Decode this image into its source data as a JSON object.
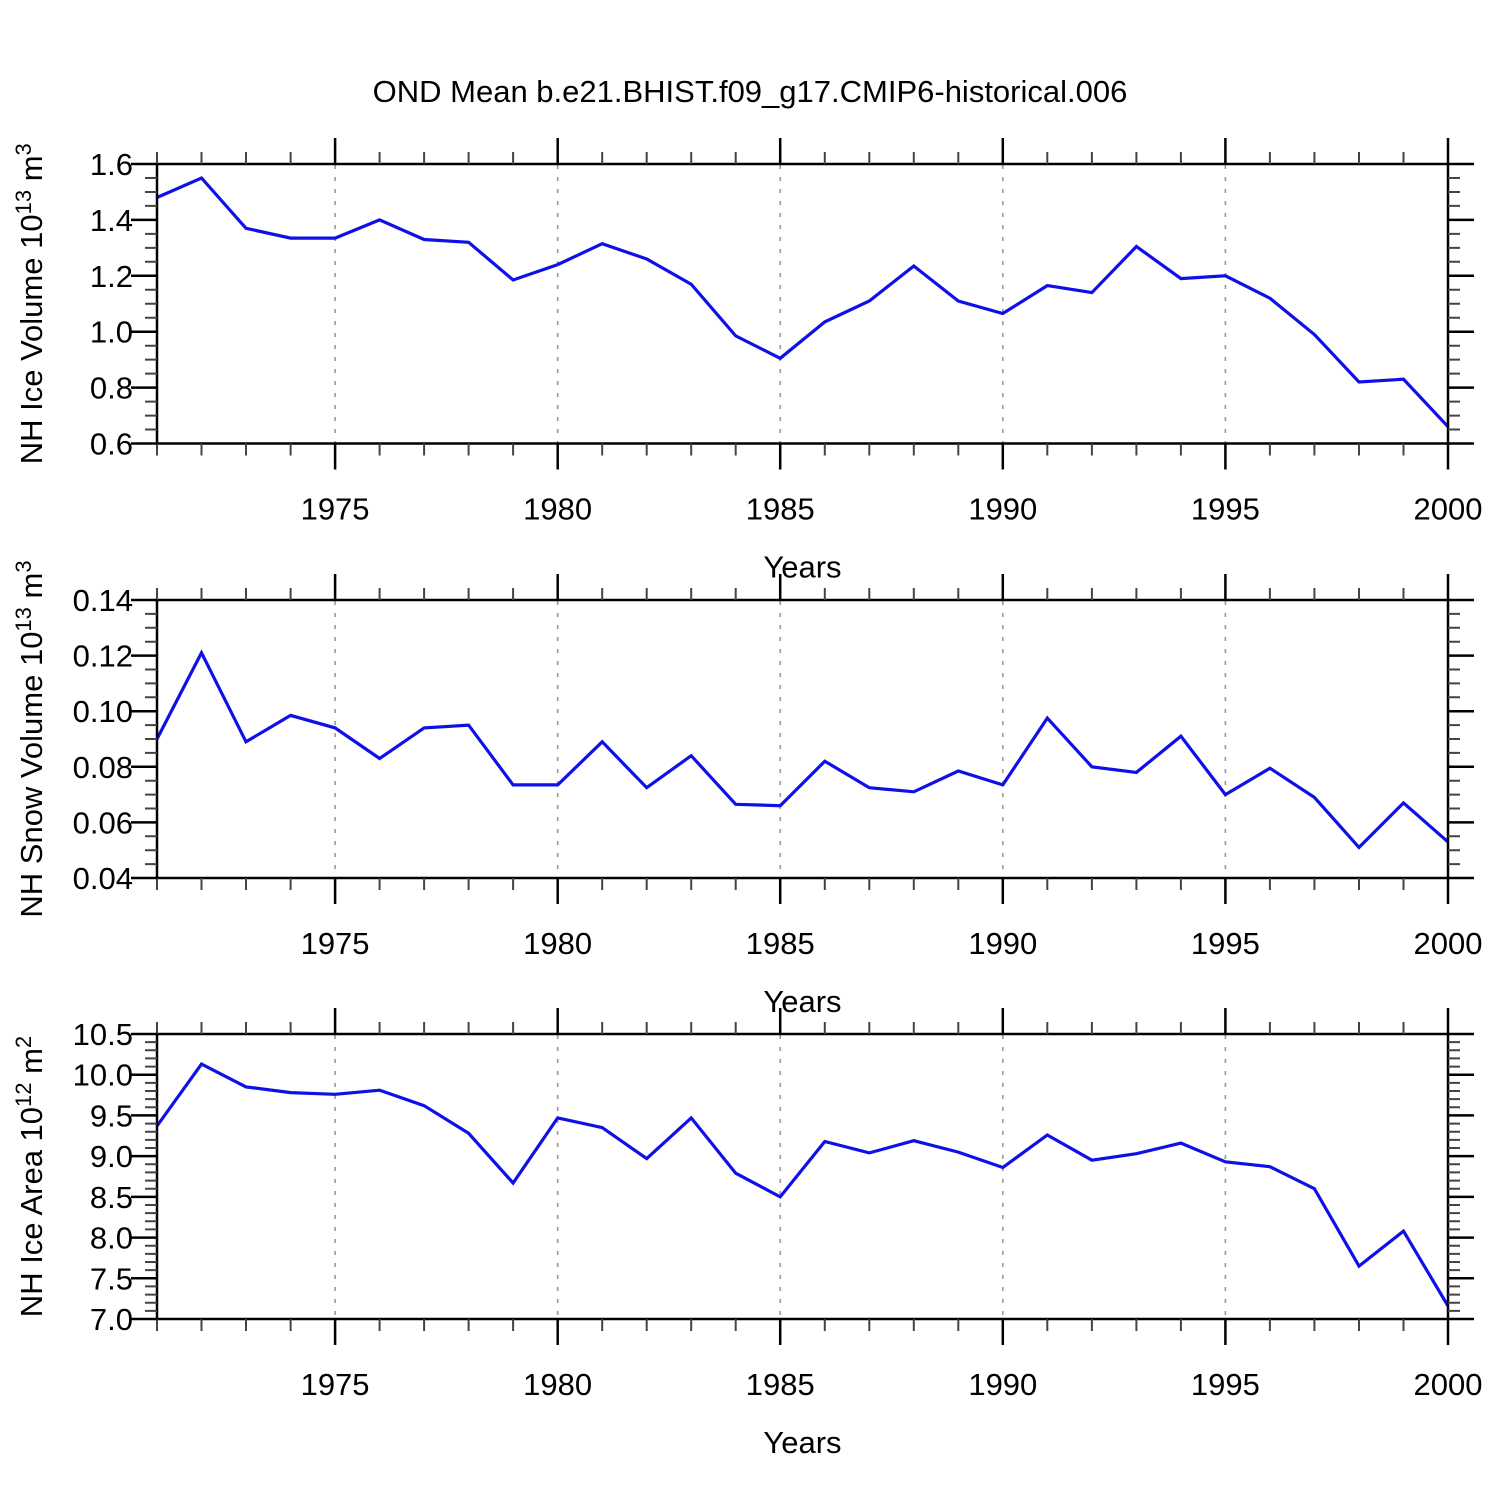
{
  "title": "OND Mean b.e21.BHIST.f09_g17.CMIP6-historical.006",
  "chart_data": [
    {
      "type": "line",
      "panel": "top",
      "ylabel": "NH Ice Volume 10^13 m^3",
      "ylabel_parts": [
        {
          "t": "NH Ice Volume 10"
        },
        {
          "t": "13",
          "sup": true
        },
        {
          "t": " m"
        },
        {
          "t": "3",
          "sup": true
        }
      ],
      "xlabel": "Years",
      "years": [
        1971,
        1972,
        1973,
        1974,
        1975,
        1976,
        1977,
        1978,
        1979,
        1980,
        1981,
        1982,
        1983,
        1984,
        1985,
        1986,
        1987,
        1988,
        1989,
        1990,
        1991,
        1992,
        1993,
        1994,
        1995,
        1996,
        1997,
        1998,
        1999,
        2000
      ],
      "values": [
        1.48,
        1.55,
        1.37,
        1.335,
        1.335,
        1.4,
        1.33,
        1.32,
        1.185,
        1.24,
        1.315,
        1.26,
        1.17,
        0.985,
        0.905,
        1.035,
        1.11,
        1.235,
        1.11,
        1.065,
        1.165,
        1.14,
        1.305,
        1.19,
        1.2,
        1.12,
        0.99,
        0.82,
        0.83,
        0.66
      ],
      "ylim": [
        0.6,
        1.6
      ],
      "yticks": [
        0.6,
        0.8,
        1.0,
        1.2,
        1.4,
        1.6
      ],
      "ytick_labels": [
        "0.6",
        "0.8",
        "1.0",
        "1.2",
        "1.4",
        "1.6"
      ],
      "y_minor_step": 0.05,
      "xticks": [
        1975,
        1980,
        1985,
        1990,
        1995,
        2000
      ],
      "xtick_labels": [
        "1975",
        "1980",
        "1985",
        "1990",
        "1995",
        "2000"
      ],
      "grid_years": [
        1975,
        1980,
        1985,
        1990,
        1995
      ],
      "line_color": "#0f0fe8",
      "grid_color": "#999999"
    },
    {
      "type": "line",
      "panel": "middle",
      "ylabel": "NH Snow Volume 10^13 m^3",
      "ylabel_parts": [
        {
          "t": "NH Snow Volume 10"
        },
        {
          "t": "13",
          "sup": true
        },
        {
          "t": " m"
        },
        {
          "t": "3",
          "sup": true
        }
      ],
      "xlabel": "Years",
      "years": [
        1971,
        1972,
        1973,
        1974,
        1975,
        1976,
        1977,
        1978,
        1979,
        1980,
        1981,
        1982,
        1983,
        1984,
        1985,
        1986,
        1987,
        1988,
        1989,
        1990,
        1991,
        1992,
        1993,
        1994,
        1995,
        1996,
        1997,
        1998,
        1999,
        2000
      ],
      "values": [
        0.09,
        0.121,
        0.089,
        0.0985,
        0.094,
        0.083,
        0.094,
        0.095,
        0.0735,
        0.0735,
        0.089,
        0.0725,
        0.084,
        0.0665,
        0.066,
        0.082,
        0.0725,
        0.071,
        0.0785,
        0.0735,
        0.0975,
        0.08,
        0.078,
        0.091,
        0.07,
        0.0795,
        0.069,
        0.051,
        0.067,
        0.053
      ],
      "ylim": [
        0.04,
        0.14
      ],
      "yticks": [
        0.04,
        0.06,
        0.08,
        0.1,
        0.12,
        0.14
      ],
      "ytick_labels": [
        "0.04",
        "0.06",
        "0.08",
        "0.10",
        "0.12",
        "0.14"
      ],
      "y_minor_step": 0.005,
      "xticks": [
        1975,
        1980,
        1985,
        1990,
        1995,
        2000
      ],
      "xtick_labels": [
        "1975",
        "1980",
        "1985",
        "1990",
        "1995",
        "2000"
      ],
      "grid_years": [
        1975,
        1980,
        1985,
        1990,
        1995
      ],
      "line_color": "#0f0fe8",
      "grid_color": "#999999"
    },
    {
      "type": "line",
      "panel": "bottom",
      "ylabel": "NH Ice Area 10^12 m^2",
      "ylabel_parts": [
        {
          "t": "NH Ice Area 10"
        },
        {
          "t": "12",
          "sup": true
        },
        {
          "t": " m"
        },
        {
          "t": "2",
          "sup": true
        }
      ],
      "xlabel": "Years",
      "years": [
        1971,
        1972,
        1973,
        1974,
        1975,
        1976,
        1977,
        1978,
        1979,
        1980,
        1981,
        1982,
        1983,
        1984,
        1985,
        1986,
        1987,
        1988,
        1989,
        1990,
        1991,
        1992,
        1993,
        1994,
        1995,
        1996,
        1997,
        1998,
        1999,
        2000
      ],
      "values": [
        9.37,
        10.13,
        9.85,
        9.78,
        9.76,
        9.81,
        9.62,
        9.28,
        8.67,
        9.47,
        9.35,
        8.97,
        9.47,
        8.79,
        8.5,
        9.18,
        9.04,
        9.19,
        9.05,
        8.86,
        9.26,
        8.95,
        9.03,
        9.16,
        8.93,
        8.87,
        8.6,
        7.65,
        8.08,
        7.16
      ],
      "ylim": [
        7.0,
        10.5
      ],
      "yticks": [
        7.0,
        7.5,
        8.0,
        8.5,
        9.0,
        9.5,
        10.0,
        10.5
      ],
      "ytick_labels": [
        "7.0",
        "7.5",
        "8.0",
        "8.5",
        "9.0",
        "9.5",
        "10.0",
        "10.5"
      ],
      "y_minor_step": 0.1,
      "xticks": [
        1975,
        1980,
        1985,
        1990,
        1995,
        2000
      ],
      "xtick_labels": [
        "1975",
        "1980",
        "1985",
        "1990",
        "1995",
        "2000"
      ],
      "grid_years": [
        1975,
        1980,
        1985,
        1990,
        1995
      ],
      "line_color": "#0f0fe8",
      "grid_color": "#999999"
    }
  ]
}
